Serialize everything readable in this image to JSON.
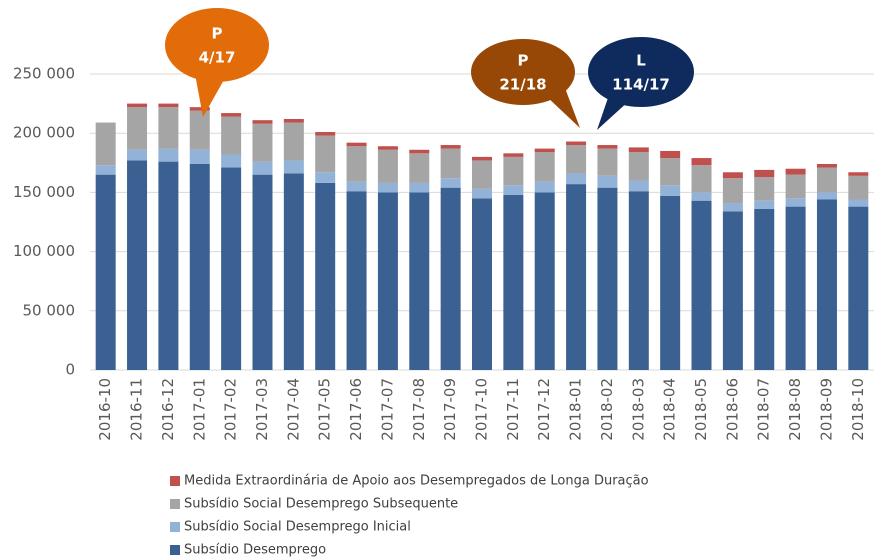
{
  "chart_data": {
    "type": "stacked_bar",
    "categories": [
      "2016-10",
      "2016-11",
      "2016-12",
      "2017-01",
      "2017-02",
      "2017-03",
      "2017-04",
      "2017-05",
      "2017-06",
      "2017-07",
      "2017-08",
      "2017-09",
      "2017-10",
      "2017-11",
      "2017-12",
      "2018-01",
      "2018-02",
      "2018-03",
      "2018-04",
      "2018-05",
      "2018-06",
      "2018-07",
      "2018-08",
      "2018-09",
      "2018-10"
    ],
    "series": [
      {
        "name": "Subsídio Desemprego",
        "color": "#3a6192",
        "values": [
          165000,
          177000,
          176000,
          174000,
          171000,
          165000,
          166000,
          158000,
          151000,
          150000,
          150000,
          154000,
          145000,
          148000,
          150000,
          157000,
          154000,
          151000,
          147000,
          143000,
          134000,
          136000,
          138000,
          144000,
          138000
        ]
      },
      {
        "name": "Subsídio Social Desemprego Inicial",
        "color": "#93b2d8",
        "values": [
          8000,
          9000,
          11000,
          12000,
          11000,
          11000,
          11000,
          9000,
          8000,
          8000,
          8000,
          8000,
          8000,
          8000,
          9000,
          9000,
          10000,
          9000,
          9000,
          7000,
          7000,
          7000,
          7000,
          6000,
          6000
        ]
      },
      {
        "name": "Subsídio Social Desemprego Subsequente",
        "color": "#a5a5a5",
        "values": [
          36000,
          36000,
          35000,
          33000,
          32000,
          32000,
          32000,
          31000,
          30000,
          28000,
          25000,
          25000,
          24000,
          24000,
          25000,
          24000,
          23000,
          24000,
          23000,
          23000,
          21000,
          20000,
          20000,
          21000,
          20000
        ]
      },
      {
        "name": "Medida Extraordinária de Apoio aos Desempregados de Longa Duração",
        "color": "#c0504d",
        "values": [
          0,
          3000,
          3000,
          3000,
          3000,
          3000,
          3000,
          3000,
          3000,
          3000,
          3000,
          3000,
          3000,
          3000,
          3000,
          3000,
          3000,
          4000,
          6000,
          6000,
          5000,
          6000,
          5000,
          3000,
          3000
        ]
      }
    ],
    "ylim": [
      0,
      250000
    ],
    "yticks": [
      0,
      {
        "value": 50000,
        "label": "50 000"
      },
      {
        "value": 100000,
        "label": "100 000"
      },
      {
        "value": 150000,
        "label": "150 000"
      },
      {
        "value": 200000,
        "label": "200 000"
      },
      {
        "value": 250000,
        "label": "250 000"
      }
    ],
    "grid": true,
    "legend": "bottom",
    "annotations": [
      {
        "label": "P",
        "text": "4/17",
        "color": "#e36c0a"
      },
      {
        "label": "P",
        "text": "21/18",
        "color": "#974806"
      },
      {
        "label": "L",
        "text": "114/17",
        "color": "#0f2a5c"
      }
    ]
  }
}
